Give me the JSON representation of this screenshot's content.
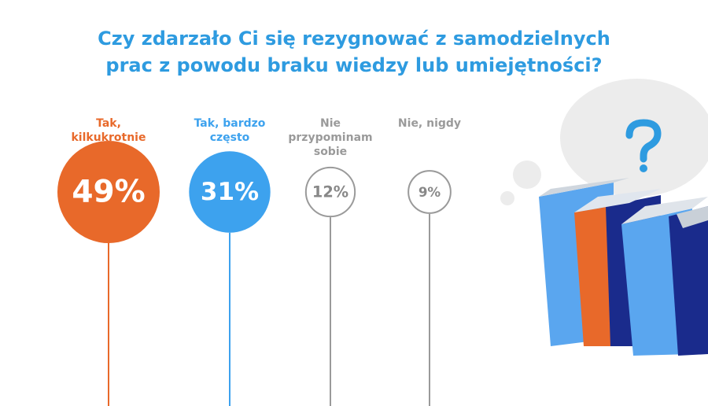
{
  "chart_data": {
    "type": "bubble",
    "title": "Czy zdarzało Ci się rezygnować z samodzielnych prac z powodu braku wiedzy lub umiejętności?",
    "categories": [
      "Tak, kilkukrotnie",
      "Tak, bardzo często",
      "Nie przypominam sobie",
      "Nie, nigdy"
    ],
    "values": [
      49,
      31,
      12,
      9
    ],
    "value_labels": [
      "49%",
      "31%",
      "12%",
      "9%"
    ],
    "colors": [
      "#e8692a",
      "#3da2ee",
      "#9a9a9a",
      "#9a9a9a"
    ],
    "filled": [
      true,
      true,
      false,
      false
    ]
  }
}
